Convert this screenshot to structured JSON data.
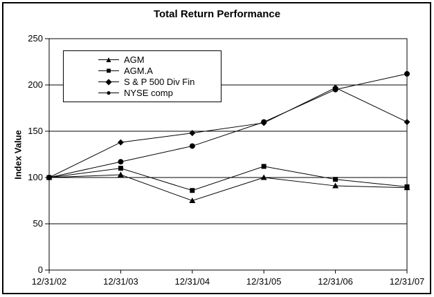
{
  "figure": {
    "background_color": "#ffffff",
    "border_color": "#000000",
    "line_color": "#000000",
    "marker_color": "#000000"
  },
  "chart_data": {
    "type": "line",
    "title": "Total Return Performance",
    "xlabel": "",
    "ylabel": "Index Value",
    "ylim": [
      0,
      250
    ],
    "yticks": [
      0,
      50,
      100,
      150,
      200,
      250
    ],
    "grid": true,
    "legend_position": "inside-upper-left",
    "categories": [
      "12/31/02",
      "12/31/03",
      "12/31/04",
      "12/31/05",
      "12/31/06",
      "12/31/07"
    ],
    "series": [
      {
        "name": "AGM",
        "marker": "triangle",
        "values": [
          100,
          103,
          75,
          100,
          91,
          89
        ]
      },
      {
        "name": "AGM.A",
        "marker": "square",
        "values": [
          100,
          110,
          86,
          112,
          98,
          90
        ]
      },
      {
        "name": "S & P 500 Div Fin",
        "marker": "diamond",
        "values": [
          100,
          138,
          148,
          159,
          197,
          160
        ]
      },
      {
        "name": "NYSE comp",
        "marker": "circle",
        "values": [
          100,
          117,
          134,
          160,
          195,
          212
        ]
      }
    ]
  }
}
